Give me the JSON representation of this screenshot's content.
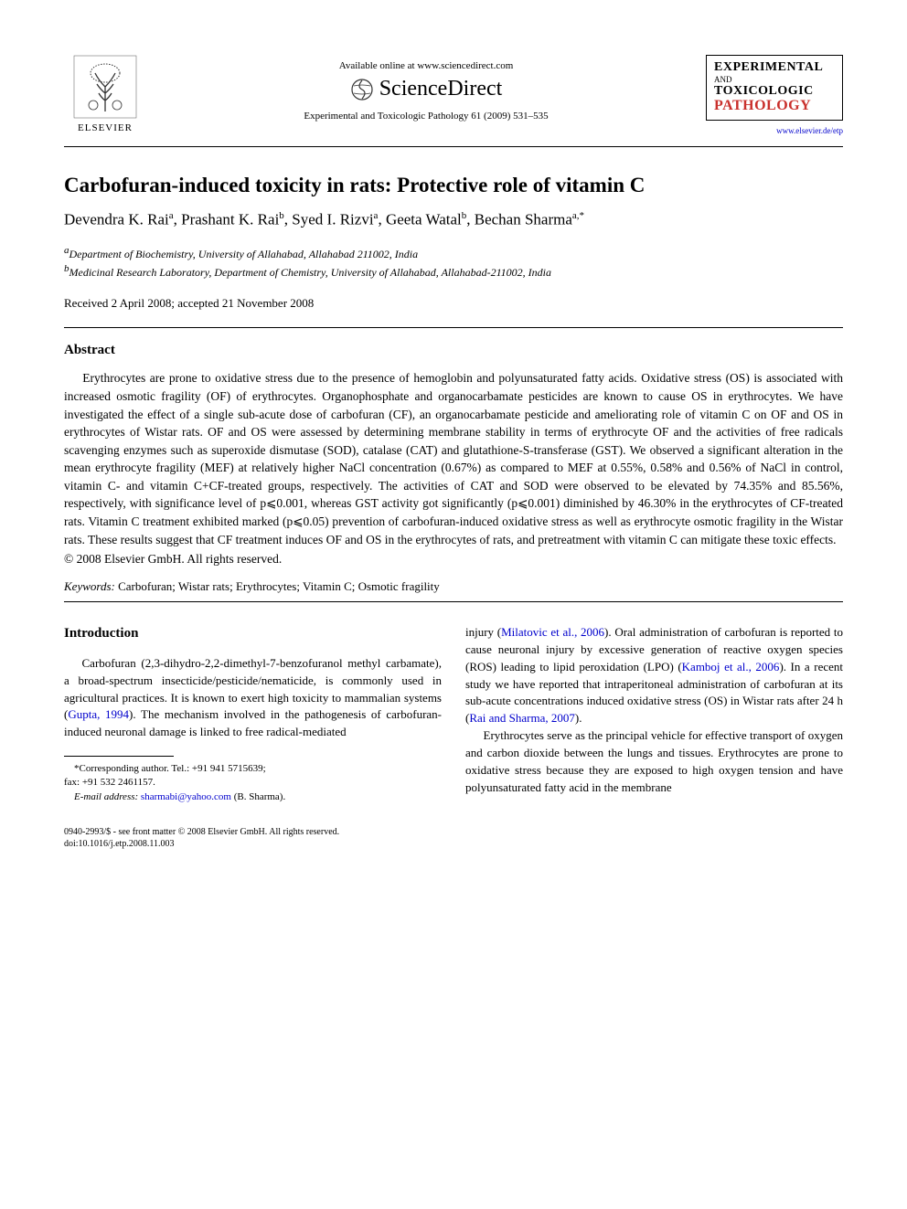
{
  "header": {
    "elsevier_label": "ELSEVIER",
    "available_text": "Available online at www.sciencedirect.com",
    "scidirect_text": "ScienceDirect",
    "journal_ref": "Experimental and Toxicologic Pathology 61 (2009) 531–535",
    "journal_logo": {
      "line1": "EXPERIMENTAL",
      "line2": "AND",
      "line3": "TOXICOLOGIC",
      "line4": "PATHOLOGY"
    },
    "journal_url": "www.elsevier.de/etp"
  },
  "title": "Carbofuran-induced toxicity in rats: Protective role of vitamin C",
  "authors_html": "Devendra K. Rai<sup>a</sup>, Prashant K. Rai<sup>b</sup>, Syed I. Rizvi<sup>a</sup>, Geeta Watal<sup>b</sup>, Bechan Sharma<sup>a,*</sup>",
  "affiliations": [
    {
      "marker": "a",
      "text": "Department of Biochemistry, University of Allahabad, Allahabad 211002, India"
    },
    {
      "marker": "b",
      "text": "Medicinal Research Laboratory, Department of Chemistry, University of Allahabad, Allahabad-211002, India"
    }
  ],
  "dates": "Received 2 April 2008; accepted 21 November 2008",
  "abstract": {
    "heading": "Abstract",
    "text": "Erythrocytes are prone to oxidative stress due to the presence of hemoglobin and polyunsaturated fatty acids. Oxidative stress (OS) is associated with increased osmotic fragility (OF) of erythrocytes. Organophosphate and organocarbamate pesticides are known to cause OS in erythrocytes. We have investigated the effect of a single sub-acute dose of carbofuran (CF), an organocarbamate pesticide and ameliorating role of vitamin C on OF and OS in erythrocytes of Wistar rats. OF and OS were assessed by determining membrane stability in terms of erythrocyte OF and the activities of free radicals scavenging enzymes such as superoxide dismutase (SOD), catalase (CAT) and glutathione-S-transferase (GST). We observed a significant alteration in the mean erythrocyte fragility (MEF) at relatively higher NaCl concentration (0.67%) as compared to MEF at 0.55%, 0.58% and 0.56% of NaCl in control, vitamin C- and vitamin C+CF-treated groups, respectively. The activities of CAT and SOD were observed to be elevated by 74.35% and 85.56%, respectively, with significance level of p⩽0.001, whereas GST activity got significantly (p⩽0.001) diminished by 46.30% in the erythrocytes of CF-treated rats. Vitamin C treatment exhibited marked (p⩽0.05) prevention of carbofuran-induced oxidative stress as well as erythrocyte osmotic fragility in the Wistar rats. These results suggest that CF treatment induces OF and OS in the erythrocytes of rats, and pretreatment with vitamin C can mitigate these toxic effects.",
    "copyright": "© 2008 Elsevier GmbH. All rights reserved."
  },
  "keywords": {
    "label": "Keywords:",
    "text": " Carbofuran; Wistar rats; Erythrocytes; Vitamin C; Osmotic fragility"
  },
  "introduction": {
    "heading": "Introduction",
    "left_para_pre": "Carbofuran (2,3-dihydro-2,2-dimethyl-7-benzofuranol methyl carbamate), a broad-spectrum insecticide/pesticide/nematicide, is commonly used in agricultural practices. It is known to exert high toxicity to mammalian systems (",
    "cite1": "Gupta, 1994",
    "left_para_post": "). The mechanism involved in the pathogenesis of carbofuran-induced neuronal damage is linked to free radical-mediated",
    "right_para1_pre": "injury (",
    "cite2": "Milatovic et al., 2006",
    "right_para1_mid1": "). Oral administration of carbofuran is reported to cause neuronal injury by excessive generation of reactive oxygen species (ROS) leading to lipid peroxidation (LPO) (",
    "cite3": "Kamboj et al., 2006",
    "right_para1_mid2": "). In a recent study we have reported that intraperitoneal administration of carbofuran at its sub-acute concentrations induced oxidative stress (OS) in Wistar rats after 24 h (",
    "cite4": "Rai and Sharma, 2007",
    "right_para1_post": ").",
    "right_para2": "Erythrocytes serve as the principal vehicle for effective transport of oxygen and carbon dioxide between the lungs and tissues. Erythrocytes are prone to oxidative stress because they are exposed to high oxygen tension and have polyunsaturated fatty acid in the membrane"
  },
  "footnote": {
    "corresponding": "*Corresponding author. Tel.: +91 941 5715639;",
    "fax": "fax: +91 532 2461157.",
    "email_label": "E-mail address:",
    "email": "sharmabi@yahoo.com",
    "email_person": " (B. Sharma)."
  },
  "footer": {
    "line1": "0940-2993/$ - see front matter © 2008 Elsevier GmbH. All rights reserved.",
    "line2": "doi:10.1016/j.etp.2008.11.003"
  },
  "colors": {
    "link": "#0000cc",
    "journal_red": "#c9302c",
    "text": "#000000",
    "bg": "#ffffff"
  }
}
